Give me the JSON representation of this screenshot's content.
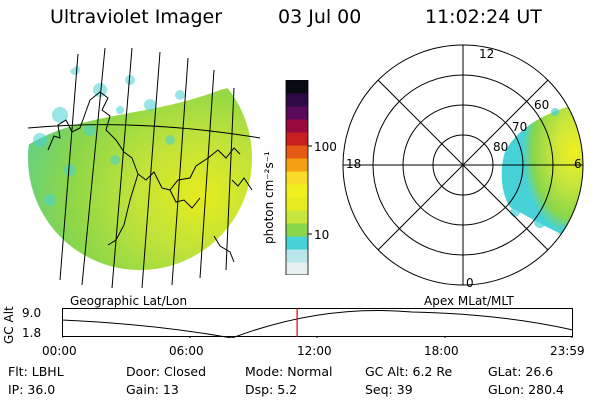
{
  "header": {
    "instrument": "Ultraviolet Imager",
    "date": "03 Jul 00",
    "time": "11:02:24 UT"
  },
  "colorbar": {
    "unit_label": "photon cm⁻²s⁻¹",
    "ticks": [
      "100",
      "10"
    ],
    "colors": [
      "#e6f0f0",
      "#b8e6ea",
      "#46d2d6",
      "#8ad64a",
      "#c8e63c",
      "#e6ec1e",
      "#f0f01e",
      "#fadc28",
      "#f5a014",
      "#e65a14",
      "#c81e1e",
      "#9b0a3c",
      "#5a0a5a",
      "#2d0a46",
      "#0a0a14"
    ]
  },
  "polar": {
    "lat_labels": [
      "80",
      "70",
      "60"
    ],
    "mlt_labels": {
      "top": "12",
      "left": "18",
      "right": "6",
      "bottom": "0"
    }
  },
  "timeline": {
    "y_label": "GC Alt",
    "y_ticks": [
      "9.0",
      "1.8"
    ],
    "left_caption": "Geographic Lat/Lon",
    "right_caption": "Apex MLat/MLT",
    "x_ticks": [
      "00:00",
      "06:00",
      "12:00",
      "18:00",
      "23:59"
    ],
    "current_time_fraction": 0.46,
    "marker_color": "#e00000"
  },
  "info": {
    "filter": "Flt: LBHL",
    "door": "Door: Closed",
    "mode": "Mode: Normal",
    "gc_alt": "GC Alt: 6.2 Re",
    "glat": "GLat:  26.6",
    "ip": "IP: 36.0",
    "gain": "Gain: 13",
    "dsp": "Dsp:     5.2",
    "seq": "Seq: 39",
    "glon": "GLon: 280.4"
  }
}
